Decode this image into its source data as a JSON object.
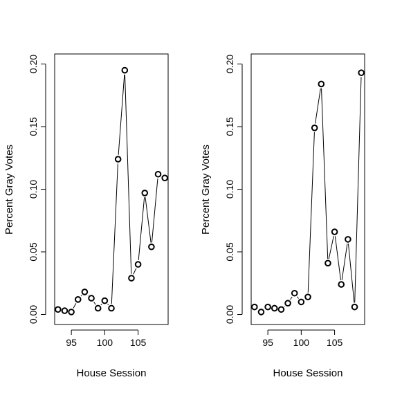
{
  "chart_data": [
    {
      "type": "line",
      "markers": "open-circle",
      "connector_gap": true,
      "xlabel": "House Session",
      "ylabel": "Percent Gray Votes",
      "xlim": [
        92.5,
        109.5
      ],
      "ylim": [
        -0.008,
        0.208
      ],
      "x_ticks": [
        "95",
        "100",
        "105"
      ],
      "y_ticks": [
        "0.00",
        "0.05",
        "0.10",
        "0.15",
        "0.20"
      ],
      "series": [
        {
          "x": [
            93,
            94,
            95,
            96,
            97,
            98,
            99,
            100,
            101,
            102,
            103,
            104,
            105,
            106,
            107,
            108,
            109
          ],
          "values": [
            0.004,
            0.003,
            0.002,
            0.012,
            0.018,
            0.013,
            0.005,
            0.011,
            0.005,
            0.124,
            0.195,
            0.029,
            0.04,
            0.097,
            0.054,
            0.112,
            0.109
          ]
        }
      ]
    },
    {
      "type": "line",
      "markers": "open-circle",
      "connector_gap": true,
      "xlabel": "House Session",
      "ylabel": "Percent Gray Votes",
      "xlim": [
        92.5,
        109.5
      ],
      "ylim": [
        -0.008,
        0.208
      ],
      "x_ticks": [
        "95",
        "100",
        "105"
      ],
      "y_ticks": [
        "0.00",
        "0.05",
        "0.10",
        "0.15",
        "0.20"
      ],
      "series": [
        {
          "x": [
            93,
            94,
            95,
            96,
            97,
            98,
            99,
            100,
            101,
            102,
            103,
            104,
            105,
            106,
            107,
            108,
            109
          ],
          "values": [
            0.006,
            0.002,
            0.006,
            0.005,
            0.004,
            0.009,
            0.017,
            0.01,
            0.014,
            0.149,
            0.184,
            0.041,
            0.066,
            0.024,
            0.06,
            0.006,
            0.193
          ]
        }
      ]
    }
  ]
}
